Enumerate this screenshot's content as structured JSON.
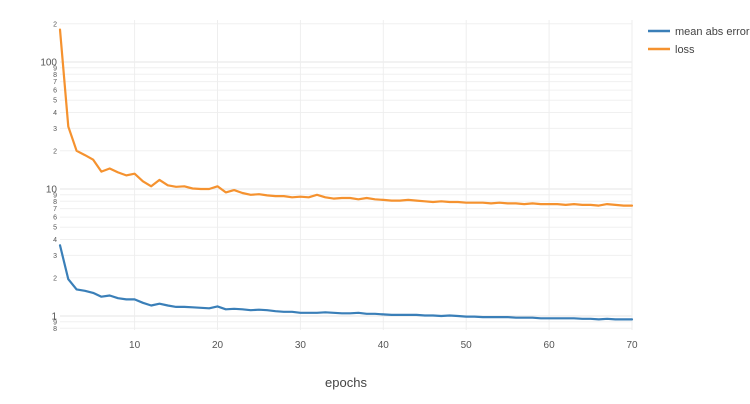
{
  "chart_data": {
    "type": "line",
    "xlabel": "epochs",
    "ylabel": "",
    "yscale": "log",
    "xlim": [
      1,
      70
    ],
    "ylim": [
      0.75,
      250
    ],
    "grid": true,
    "legend_position": "top-right",
    "x_ticks": [
      10,
      20,
      30,
      40,
      50,
      60,
      70
    ],
    "y_major_ticks": [
      {
        "value": 1,
        "label": "1"
      },
      {
        "value": 10,
        "label": "10"
      },
      {
        "value": 100,
        "label": "100"
      }
    ],
    "y_minor_ticks": [
      {
        "value": 0.8,
        "label": "8"
      },
      {
        "value": 0.9,
        "label": "9"
      },
      {
        "value": 2,
        "label": "2"
      },
      {
        "value": 3,
        "label": "3"
      },
      {
        "value": 4,
        "label": "4"
      },
      {
        "value": 5,
        "label": "5"
      },
      {
        "value": 6,
        "label": "6"
      },
      {
        "value": 7,
        "label": "7"
      },
      {
        "value": 8,
        "label": "8"
      },
      {
        "value": 9,
        "label": "9"
      },
      {
        "value": 20,
        "label": "2"
      },
      {
        "value": 30,
        "label": "3"
      },
      {
        "value": 40,
        "label": "4"
      },
      {
        "value": 50,
        "label": "5"
      },
      {
        "value": 60,
        "label": "6"
      },
      {
        "value": 70,
        "label": "7"
      },
      {
        "value": 80,
        "label": "8"
      },
      {
        "value": 90,
        "label": "9"
      },
      {
        "value": 200,
        "label": "2"
      }
    ],
    "x": [
      1,
      2,
      3,
      4,
      5,
      6,
      7,
      8,
      9,
      10,
      11,
      12,
      13,
      14,
      15,
      16,
      17,
      18,
      19,
      20,
      21,
      22,
      23,
      24,
      25,
      26,
      27,
      28,
      29,
      30,
      31,
      32,
      33,
      34,
      35,
      36,
      37,
      38,
      39,
      40,
      41,
      42,
      43,
      44,
      45,
      46,
      47,
      48,
      49,
      50,
      51,
      52,
      53,
      54,
      55,
      56,
      57,
      58,
      59,
      60,
      61,
      62,
      63,
      64,
      65,
      66,
      67,
      68,
      69,
      70
    ],
    "series": [
      {
        "name": "mean abs error",
        "color": "#3a7fb8",
        "values": [
          3.6,
          1.95,
          1.62,
          1.58,
          1.52,
          1.42,
          1.45,
          1.38,
          1.35,
          1.35,
          1.27,
          1.21,
          1.25,
          1.21,
          1.18,
          1.18,
          1.17,
          1.16,
          1.15,
          1.19,
          1.13,
          1.14,
          1.13,
          1.11,
          1.12,
          1.11,
          1.09,
          1.08,
          1.08,
          1.06,
          1.06,
          1.06,
          1.07,
          1.06,
          1.05,
          1.05,
          1.06,
          1.04,
          1.04,
          1.03,
          1.02,
          1.02,
          1.02,
          1.02,
          1.01,
          1.01,
          1.0,
          1.01,
          1.0,
          0.99,
          0.99,
          0.98,
          0.98,
          0.98,
          0.98,
          0.97,
          0.97,
          0.97,
          0.96,
          0.96,
          0.96,
          0.96,
          0.96,
          0.95,
          0.95,
          0.94,
          0.95,
          0.94,
          0.94,
          0.94
        ]
      },
      {
        "name": "loss",
        "color": "#f5922f",
        "values": [
          180,
          31,
          20,
          18.5,
          17,
          13.7,
          14.5,
          13.5,
          12.8,
          13.2,
          11.5,
          10.5,
          11.8,
          10.7,
          10.4,
          10.5,
          10.1,
          10.0,
          10.0,
          10.5,
          9.4,
          9.8,
          9.3,
          9.0,
          9.1,
          8.9,
          8.8,
          8.8,
          8.6,
          8.7,
          8.6,
          9.0,
          8.6,
          8.4,
          8.5,
          8.5,
          8.3,
          8.5,
          8.3,
          8.2,
          8.1,
          8.1,
          8.2,
          8.1,
          8.0,
          7.9,
          8.0,
          7.9,
          7.9,
          7.8,
          7.8,
          7.8,
          7.7,
          7.8,
          7.7,
          7.7,
          7.6,
          7.7,
          7.6,
          7.6,
          7.6,
          7.5,
          7.6,
          7.5,
          7.5,
          7.4,
          7.6,
          7.5,
          7.4,
          7.4
        ]
      }
    ]
  }
}
